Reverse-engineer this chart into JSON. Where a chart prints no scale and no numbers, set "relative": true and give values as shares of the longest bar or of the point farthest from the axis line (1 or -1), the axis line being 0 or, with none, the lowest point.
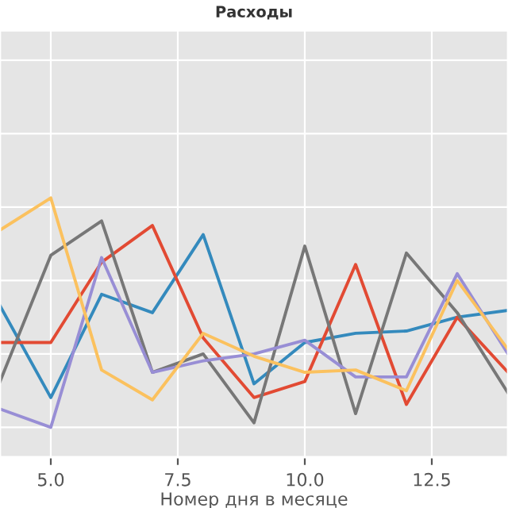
{
  "chart_data": {
    "type": "line",
    "title": "Расходы",
    "xlabel": "Номер дня в месяце",
    "relative": true,
    "x": [
      4,
      5,
      6,
      7,
      8,
      9,
      10,
      11,
      12,
      13,
      14
    ],
    "xlim": [
      4,
      14
    ],
    "xticks": [
      {
        "value": 5,
        "label": "5.0"
      },
      {
        "value": 7.5,
        "label": "7.5"
      },
      {
        "value": 10,
        "label": "10.0"
      },
      {
        "value": 12.5,
        "label": "12.5"
      }
    ],
    "tick_labels": "x",
    "grid": true,
    "legend": false,
    "series": [
      {
        "color": "#348abd",
        "values": [
          0.53,
          0.13,
          0.58,
          0.5,
          0.84,
          0.19,
          0.37,
          0.41,
          0.42,
          0.48,
          0.51
        ]
      },
      {
        "color": "#e24a33",
        "values": [
          0.37,
          0.37,
          0.72,
          0.88,
          0.39,
          0.13,
          0.2,
          0.71,
          0.1,
          0.48,
          0.24
        ]
      },
      {
        "color": "#777777",
        "values": [
          0.2,
          0.75,
          0.9,
          0.24,
          0.32,
          0.02,
          0.79,
          0.06,
          0.76,
          0.5,
          0.15
        ]
      },
      {
        "color": "#988ed5",
        "values": [
          0.08,
          0.0,
          0.74,
          0.24,
          0.29,
          0.32,
          0.38,
          0.22,
          0.22,
          0.67,
          0.32
        ]
      },
      {
        "color": "#fbc15e",
        "values": [
          0.86,
          1.0,
          0.25,
          0.12,
          0.41,
          0.31,
          0.24,
          0.25,
          0.16,
          0.64,
          0.34
        ]
      }
    ]
  }
}
